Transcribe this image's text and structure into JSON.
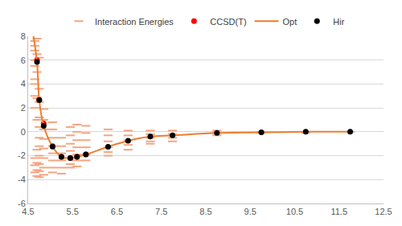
{
  "chart_data": {
    "type": "scatter",
    "xlim": [
      4.5,
      12.5
    ],
    "xticks": [
      4.5,
      5.5,
      6.5,
      7.5,
      8.5,
      9.5,
      10.5,
      11.5,
      12.5
    ],
    "ylim": [
      -6,
      8
    ],
    "yticks": [
      -6,
      -4,
      -2,
      0,
      2,
      4,
      6,
      8
    ],
    "grid": true,
    "legend": "top",
    "series": [
      {
        "name": "Interaction Energies",
        "type": "scatter",
        "marker": "dash",
        "color": "#f4a582",
        "x": [
          4.65,
          4.65,
          4.65,
          4.65,
          4.65,
          4.65,
          4.65,
          4.65,
          4.65,
          4.65,
          4.65,
          4.65,
          4.7,
          4.7,
          4.7,
          4.7,
          4.7,
          4.7,
          4.7,
          4.7,
          4.7,
          4.75,
          4.75,
          4.75,
          4.75,
          4.75,
          4.75,
          4.75,
          4.75,
          4.75,
          4.75,
          4.75,
          4.85,
          4.85,
          4.85,
          4.85,
          4.85,
          4.85,
          4.85,
          4.85,
          5.05,
          5.05,
          5.05,
          5.05,
          5.05,
          5.05,
          5.05,
          5.05,
          5.25,
          5.25,
          5.25,
          5.25,
          5.25,
          5.25,
          5.45,
          5.45,
          5.45,
          5.45,
          5.45,
          5.45,
          5.45,
          5.6,
          5.6,
          5.6,
          5.6,
          5.6,
          5.6,
          5.6,
          5.8,
          5.8,
          5.8,
          5.8,
          5.8,
          5.8,
          6.3,
          6.3,
          6.3,
          6.3,
          6.3,
          6.3,
          6.75,
          6.75,
          6.75,
          6.75,
          6.75,
          7.25,
          7.25,
          7.25,
          7.25,
          7.25,
          7.75,
          7.75,
          7.75,
          7.75,
          8.75,
          8.75,
          8.75,
          9.75,
          9.75,
          10.75,
          10.75,
          11.75
        ],
        "values": [
          7.6,
          7.2,
          6.8,
          6.0,
          5.5,
          4.4,
          4.0,
          3.0,
          2.0,
          -2.2,
          -2.8,
          -3.4,
          7.8,
          6.5,
          5.0,
          2.8,
          1.0,
          -1.5,
          -2.6,
          -3.2,
          -3.7,
          6.2,
          3.6,
          2.5,
          1.2,
          0.4,
          -0.5,
          -1.2,
          -2.0,
          -2.7,
          -3.3,
          -3.8,
          1.9,
          1.0,
          0.2,
          -0.6,
          -1.4,
          -2.2,
          -3.0,
          -3.6,
          0.8,
          0.2,
          -0.5,
          -1.2,
          -1.8,
          -2.4,
          -3.0,
          -3.4,
          -0.5,
          -1.2,
          -1.8,
          -2.4,
          -3.0,
          -3.5,
          0.4,
          -0.3,
          -1.0,
          -1.6,
          -2.2,
          -2.7,
          -3.0,
          0.6,
          0.0,
          -0.7,
          -1.3,
          -1.9,
          -2.4,
          -2.9,
          0.5,
          -0.1,
          -0.7,
          -1.3,
          -1.9,
          -2.4,
          0.2,
          -0.3,
          -0.8,
          -1.3,
          -1.7,
          -2.0,
          0.1,
          -0.3,
          -0.7,
          -1.1,
          -1.5,
          0.1,
          -0.2,
          -0.5,
          -0.8,
          -1.0,
          0.1,
          -0.2,
          -0.5,
          -0.8,
          0.1,
          -0.1,
          -0.3,
          0.0,
          -0.1,
          0.0,
          -0.1,
          0.0
        ]
      },
      {
        "name": "CCSD(T)",
        "type": "scatter",
        "marker": "circle",
        "color": "#ff0000",
        "x": [
          4.7,
          4.75,
          4.85,
          5.05,
          5.25,
          5.45,
          5.6,
          5.8
        ],
        "values": [
          6.0,
          2.7,
          0.7,
          -1.2,
          -2.1,
          -2.2,
          -2.1,
          -1.9
        ]
      },
      {
        "name": "Opt",
        "type": "line",
        "line_style": "solid",
        "color": "#ed7d31",
        "x": [
          4.62,
          4.7,
          4.75,
          4.85,
          5.05,
          5.25,
          5.45,
          5.6,
          5.8,
          6.3,
          6.75,
          7.25,
          7.75,
          8.75,
          9.75,
          10.75,
          11.75
        ],
        "values": [
          8.0,
          5.84,
          2.65,
          0.5,
          -1.24,
          -2.1,
          -2.2,
          -2.1,
          -1.9,
          -1.25,
          -0.75,
          -0.4,
          -0.3,
          -0.1,
          -0.05,
          0.0,
          0.0
        ]
      },
      {
        "name": "Hir",
        "type": "scatter",
        "marker": "circle",
        "color": "#000000",
        "x": [
          4.7,
          4.75,
          4.85,
          5.05,
          5.25,
          5.45,
          5.6,
          5.8,
          6.3,
          6.75,
          7.25,
          7.75,
          8.75,
          9.75,
          10.75,
          11.75
        ],
        "values": [
          5.84,
          2.65,
          0.5,
          -1.24,
          -2.1,
          -2.2,
          -2.1,
          -1.9,
          -1.25,
          -0.75,
          -0.4,
          -0.3,
          -0.1,
          -0.05,
          0.0,
          0.0
        ]
      }
    ]
  }
}
